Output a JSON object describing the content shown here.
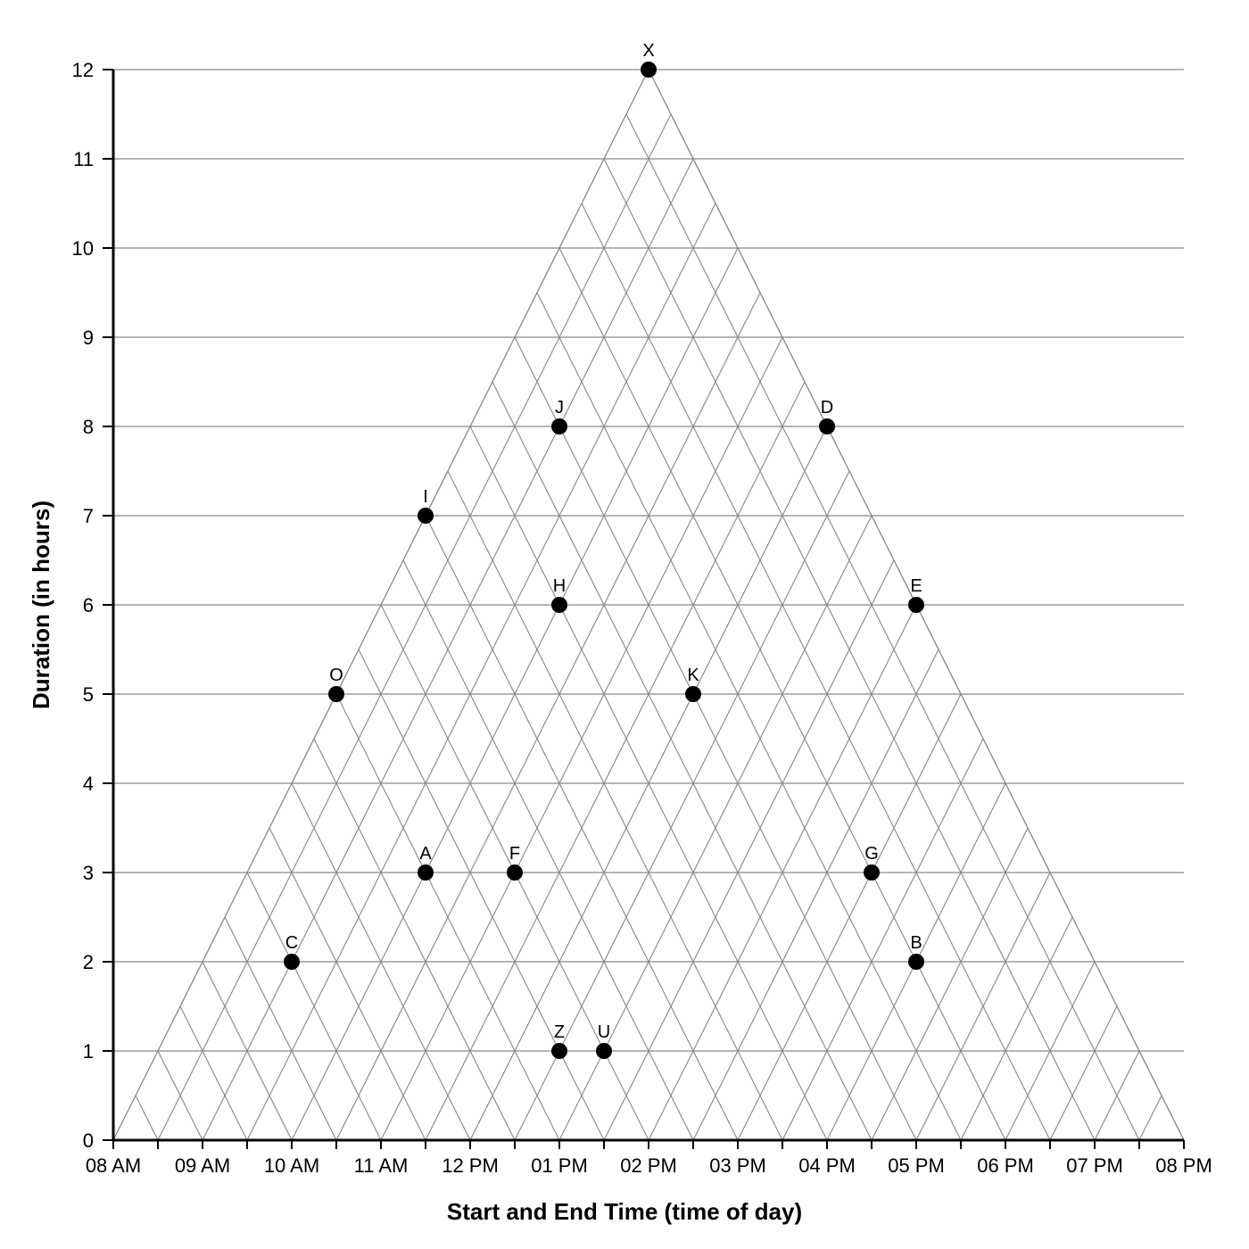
{
  "chart_data": {
    "type": "scatter",
    "chart_style": "triangular interval model (start/end time vs duration)",
    "xlabel": "Start and End Time (time of day)",
    "ylabel": "Duration (in hours)",
    "x_ticks": [
      "08 AM",
      "09 AM",
      "10 AM",
      "11 AM",
      "12 PM",
      "01 PM",
      "02 PM",
      "03 PM",
      "04 PM",
      "05 PM",
      "06 PM",
      "07 PM",
      "08 PM"
    ],
    "y_ticks": [
      0,
      1,
      2,
      3,
      4,
      5,
      6,
      7,
      8,
      9,
      10,
      11,
      12
    ],
    "xlim": [
      "08 AM",
      "08 PM"
    ],
    "ylim": [
      0,
      12
    ],
    "grid": true,
    "point_color": "#000000",
    "grid_color": "#888888",
    "points": [
      {
        "label": "X",
        "midpoint": "02:00 PM",
        "duration": 12
      },
      {
        "label": "J",
        "midpoint": "01:00 PM",
        "duration": 8
      },
      {
        "label": "D",
        "midpoint": "04:00 PM",
        "duration": 8
      },
      {
        "label": "I",
        "midpoint": "11:30 AM",
        "duration": 7
      },
      {
        "label": "H",
        "midpoint": "01:00 PM",
        "duration": 6
      },
      {
        "label": "E",
        "midpoint": "05:00 PM",
        "duration": 6
      },
      {
        "label": "O",
        "midpoint": "10:30 AM",
        "duration": 5
      },
      {
        "label": "K",
        "midpoint": "02:30 PM",
        "duration": 5
      },
      {
        "label": "A",
        "midpoint": "11:30 AM",
        "duration": 3
      },
      {
        "label": "F",
        "midpoint": "12:30 PM",
        "duration": 3
      },
      {
        "label": "G",
        "midpoint": "04:30 PM",
        "duration": 3
      },
      {
        "label": "C",
        "midpoint": "10:00 AM",
        "duration": 2
      },
      {
        "label": "B",
        "midpoint": "05:00 PM",
        "duration": 2
      },
      {
        "label": "Z",
        "midpoint": "01:00 PM",
        "duration": 1
      },
      {
        "label": "U",
        "midpoint": "01:30 PM",
        "duration": 1
      }
    ]
  }
}
